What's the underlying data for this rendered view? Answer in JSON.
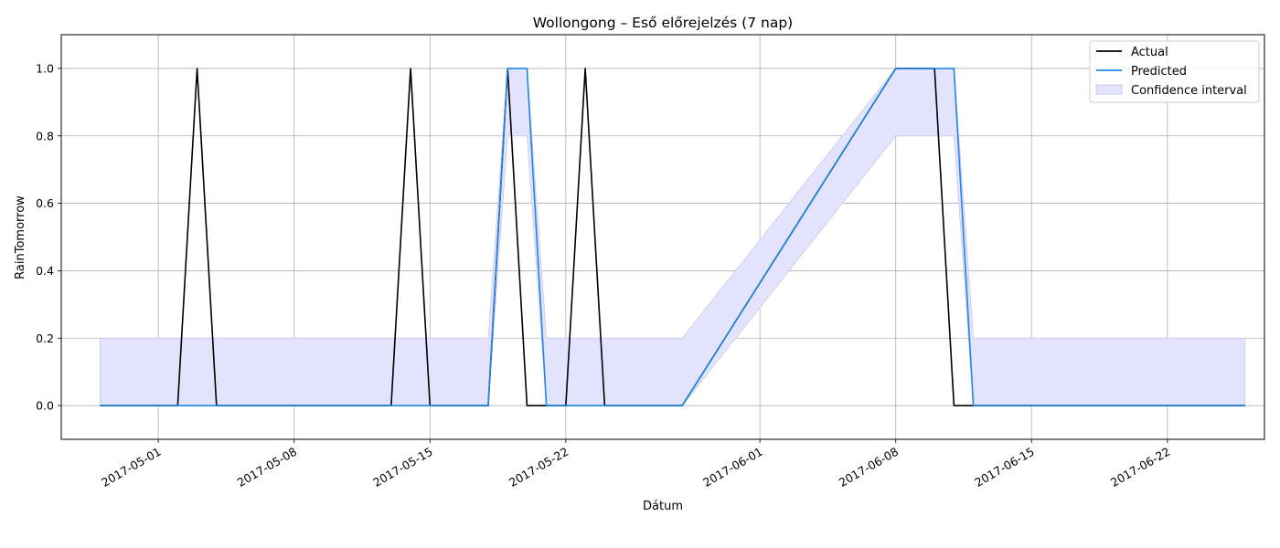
{
  "chart_data": {
    "type": "line",
    "title": "Wollongong – Eső előrejelzés (7 nap)",
    "xlabel": "Dátum",
    "ylabel": "RainTomorrow",
    "x_range": [
      "2017-04-26",
      "2017-06-27"
    ],
    "ylim": [
      -0.1,
      1.1
    ],
    "y_ticks": [
      0.0,
      0.2,
      0.4,
      0.6,
      0.8,
      1.0
    ],
    "y_tick_labels": [
      "0.0",
      "0.2",
      "0.4",
      "0.6",
      "0.8",
      "1.0"
    ],
    "x_ticks": [
      "2017-05-01",
      "2017-05-08",
      "2017-05-15",
      "2017-05-22",
      "2017-06-01",
      "2017-06-08",
      "2017-06-15",
      "2017-06-22"
    ],
    "x_tick_labels": [
      "2017-05-01",
      "2017-05-08",
      "2017-05-15",
      "2017-05-22",
      "2017-06-01",
      "2017-06-08",
      "2017-06-15",
      "2017-06-22"
    ],
    "grid": true,
    "legend_position": "top-right",
    "series": [
      {
        "name": "Actual",
        "color": "#000000",
        "x": [
          "2017-04-28",
          "2017-05-02",
          "2017-05-03",
          "2017-05-04",
          "2017-05-13",
          "2017-05-14",
          "2017-05-15",
          "2017-05-18",
          "2017-05-19",
          "2017-05-20",
          "2017-05-22",
          "2017-05-23",
          "2017-05-24",
          "2017-05-28",
          "2017-06-08",
          "2017-06-10",
          "2017-06-11",
          "2017-06-12",
          "2017-06-26"
        ],
        "y": [
          0,
          0,
          1,
          0,
          0,
          1,
          0,
          0,
          1,
          0,
          0,
          1,
          0,
          0,
          1,
          1,
          0,
          0,
          0
        ]
      },
      {
        "name": "Predicted",
        "color": "#1e88e5",
        "x": [
          "2017-04-28",
          "2017-05-18",
          "2017-05-19",
          "2017-05-20",
          "2017-05-21",
          "2017-05-28",
          "2017-06-08",
          "2017-06-11",
          "2017-06-12",
          "2017-06-26"
        ],
        "y": [
          0,
          0,
          1,
          1,
          0,
          0,
          1,
          1,
          0,
          0
        ]
      }
    ],
    "confidence_interval": {
      "name": "Confidence interval",
      "color": "#e3e3fd",
      "edge_color": "#c8c8f2",
      "x": [
        "2017-04-28",
        "2017-05-18",
        "2017-05-19",
        "2017-05-20",
        "2017-05-21",
        "2017-05-28",
        "2017-06-08",
        "2017-06-11",
        "2017-06-12",
        "2017-06-26"
      ],
      "lower": [
        0,
        0,
        0.8,
        0.8,
        0,
        0,
        0.8,
        0.8,
        0,
        0
      ],
      "upper": [
        0.2,
        0.2,
        1,
        1,
        0.2,
        0.2,
        1,
        1,
        0.2,
        0.2
      ]
    }
  }
}
